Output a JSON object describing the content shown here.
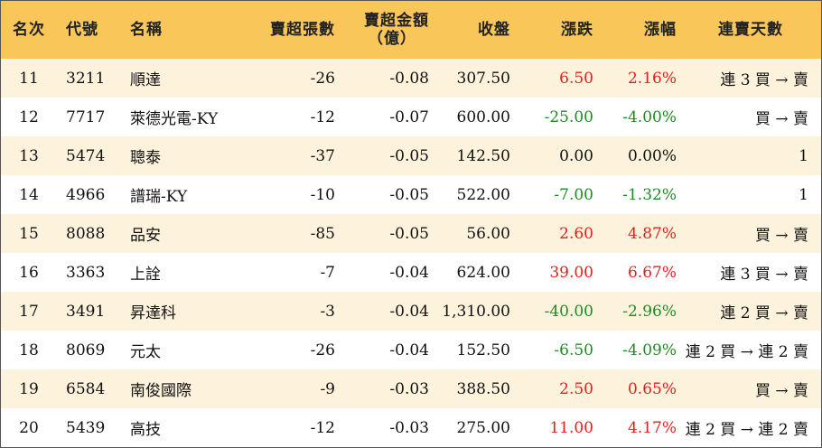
{
  "headers": {
    "rank": "名次",
    "code": "代號",
    "name": "名稱",
    "volume": "賣超張數",
    "amount_line1": "賣超金額",
    "amount_line2": "（億）",
    "close": "收盤",
    "change": "漲跌",
    "percent": "漲幅",
    "streak": "連賣天數"
  },
  "colors": {
    "header_bg": "#f9c659",
    "odd_row_bg": "#fdf2dc",
    "up": "#e3211c",
    "down": "#1f8b24"
  },
  "rows": [
    {
      "rank": "11",
      "code": "3211",
      "name": "順達",
      "volume": "-26",
      "amount": "-0.08",
      "close": "307.50",
      "change": "6.50",
      "percent": "2.16%",
      "dir": "up",
      "streak": "連 3 買 → 賣"
    },
    {
      "rank": "12",
      "code": "7717",
      "name": "萊德光電-KY",
      "volume": "-12",
      "amount": "-0.07",
      "close": "600.00",
      "change": "-25.00",
      "percent": "-4.00%",
      "dir": "down",
      "streak": "買 → 賣"
    },
    {
      "rank": "13",
      "code": "5474",
      "name": "聰泰",
      "volume": "-37",
      "amount": "-0.05",
      "close": "142.50",
      "change": "0.00",
      "percent": "0.00%",
      "dir": "flat",
      "streak": "1"
    },
    {
      "rank": "14",
      "code": "4966",
      "name": "譜瑞-KY",
      "volume": "-10",
      "amount": "-0.05",
      "close": "522.00",
      "change": "-7.00",
      "percent": "-1.32%",
      "dir": "down",
      "streak": "1"
    },
    {
      "rank": "15",
      "code": "8088",
      "name": "品安",
      "volume": "-85",
      "amount": "-0.05",
      "close": "56.00",
      "change": "2.60",
      "percent": "4.87%",
      "dir": "up",
      "streak": "買 → 賣"
    },
    {
      "rank": "16",
      "code": "3363",
      "name": "上詮",
      "volume": "-7",
      "amount": "-0.04",
      "close": "624.00",
      "change": "39.00",
      "percent": "6.67%",
      "dir": "up",
      "streak": "連 3 買 → 賣"
    },
    {
      "rank": "17",
      "code": "3491",
      "name": "昇達科",
      "volume": "-3",
      "amount": "-0.04",
      "close": "1,310.00",
      "change": "-40.00",
      "percent": "-2.96%",
      "dir": "down",
      "streak": "連 2 買 → 賣"
    },
    {
      "rank": "18",
      "code": "8069",
      "name": "元太",
      "volume": "-26",
      "amount": "-0.04",
      "close": "152.50",
      "change": "-6.50",
      "percent": "-4.09%",
      "dir": "down",
      "streak": "連 2 買 → 連 2 賣"
    },
    {
      "rank": "19",
      "code": "6584",
      "name": "南俊國際",
      "volume": "-9",
      "amount": "-0.03",
      "close": "388.50",
      "change": "2.50",
      "percent": "0.65%",
      "dir": "up",
      "streak": "買 → 賣"
    },
    {
      "rank": "20",
      "code": "5439",
      "name": "高技",
      "volume": "-12",
      "amount": "-0.03",
      "close": "275.00",
      "change": "11.00",
      "percent": "4.17%",
      "dir": "up",
      "streak": "連 2 買 → 連 2 賣"
    }
  ]
}
